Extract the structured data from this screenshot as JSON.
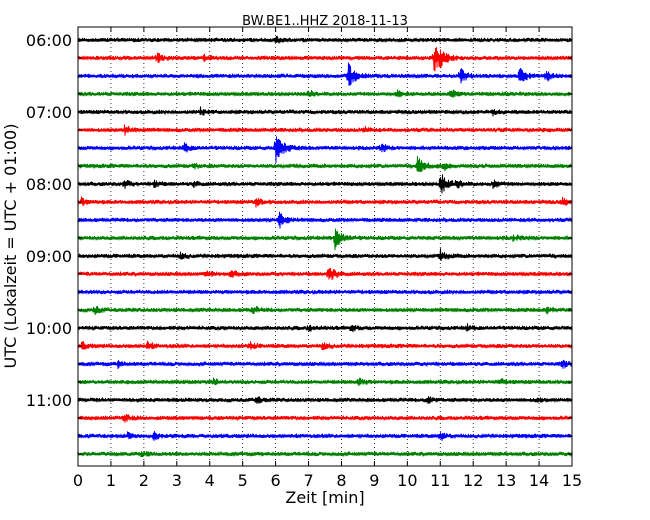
{
  "chart_data": {
    "type": "line",
    "subtype": "seismogram-dayplot",
    "title": "BW.BE1..HHZ 2018-11-13",
    "xlabel": "Zeit  [min]",
    "ylabel": "UTC (Lokalzeit = UTC + 01:00)",
    "xlim": [
      0,
      15
    ],
    "x_ticks": [
      "0",
      "1",
      "2",
      "3",
      "4",
      "5",
      "6",
      "7",
      "8",
      "9",
      "10",
      "11",
      "12",
      "13",
      "14",
      "15"
    ],
    "y_tick_labels": [
      "06:00",
      "07:00",
      "08:00",
      "09:00",
      "10:00",
      "11:00"
    ],
    "grid": "vertical-dotted",
    "trace_colors": [
      "#000000",
      "#ff0000",
      "#0000ff",
      "#008000"
    ],
    "traces": [
      {
        "start": "06:00",
        "events": [
          [
            6.0,
            0.4
          ]
        ]
      },
      {
        "start": "06:15",
        "events": [
          [
            2.4,
            0.5
          ],
          [
            3.8,
            0.4
          ],
          [
            10.8,
            1.4
          ],
          [
            11.0,
            0.6
          ]
        ]
      },
      {
        "start": "06:30",
        "events": [
          [
            8.2,
            1.3
          ],
          [
            11.6,
            0.8
          ],
          [
            13.4,
            0.8
          ],
          [
            14.2,
            0.5
          ]
        ]
      },
      {
        "start": "06:45",
        "events": [
          [
            7.0,
            0.4
          ],
          [
            9.7,
            0.3
          ],
          [
            11.3,
            0.4
          ]
        ]
      },
      {
        "start": "07:00",
        "events": [
          [
            3.7,
            0.4
          ],
          [
            12.6,
            0.3
          ]
        ]
      },
      {
        "start": "07:15",
        "events": [
          [
            1.4,
            0.5
          ],
          [
            8.7,
            0.3
          ]
        ]
      },
      {
        "start": "07:30",
        "events": [
          [
            3.2,
            0.5
          ],
          [
            6.0,
            1.5
          ],
          [
            9.2,
            0.4
          ]
        ]
      },
      {
        "start": "07:45",
        "events": [
          [
            3.5,
            0.3
          ],
          [
            10.3,
            1.0
          ],
          [
            11.1,
            0.4
          ]
        ]
      },
      {
        "start": "08:00",
        "events": [
          [
            1.4,
            0.4
          ],
          [
            2.3,
            0.3
          ],
          [
            3.5,
            0.3
          ],
          [
            11.0,
            1.2
          ],
          [
            11.5,
            0.4
          ],
          [
            12.6,
            0.4
          ]
        ]
      },
      {
        "start": "08:15",
        "events": [
          [
            0.1,
            0.4
          ],
          [
            5.4,
            0.4
          ],
          [
            14.7,
            0.4
          ]
        ]
      },
      {
        "start": "08:30",
        "events": [
          [
            6.1,
            0.8
          ]
        ]
      },
      {
        "start": "08:45",
        "events": [
          [
            7.8,
            1.1
          ],
          [
            13.2,
            0.4
          ]
        ]
      },
      {
        "start": "09:00",
        "events": [
          [
            3.1,
            0.3
          ],
          [
            11.0,
            0.6
          ]
        ]
      },
      {
        "start": "09:15",
        "events": [
          [
            3.9,
            0.4
          ],
          [
            4.6,
            0.4
          ],
          [
            7.6,
            0.9
          ]
        ]
      },
      {
        "start": "09:30",
        "events": []
      },
      {
        "start": "09:45",
        "events": [
          [
            0.5,
            0.4
          ],
          [
            5.3,
            0.4
          ],
          [
            14.2,
            0.4
          ]
        ]
      },
      {
        "start": "10:00",
        "events": [
          [
            7.0,
            0.3
          ],
          [
            8.3,
            0.3
          ],
          [
            11.8,
            0.3
          ]
        ]
      },
      {
        "start": "10:15",
        "events": [
          [
            0.1,
            0.4
          ],
          [
            2.1,
            0.4
          ],
          [
            5.2,
            0.4
          ],
          [
            7.4,
            0.4
          ]
        ]
      },
      {
        "start": "10:30",
        "events": [
          [
            1.2,
            0.3
          ],
          [
            14.7,
            0.4
          ]
        ]
      },
      {
        "start": "10:45",
        "events": [
          [
            4.1,
            0.3
          ],
          [
            8.5,
            0.4
          ],
          [
            12.8,
            0.3
          ]
        ]
      },
      {
        "start": "11:00",
        "events": [
          [
            5.4,
            0.4
          ],
          [
            10.6,
            0.4
          ],
          [
            13.9,
            0.3
          ]
        ]
      },
      {
        "start": "11:15",
        "events": [
          [
            1.4,
            0.4
          ]
        ]
      },
      {
        "start": "11:30",
        "events": [
          [
            1.5,
            0.3
          ],
          [
            2.3,
            0.4
          ],
          [
            11.0,
            0.4
          ]
        ]
      },
      {
        "start": "11:45",
        "events": [
          [
            1.9,
            0.3
          ]
        ]
      }
    ]
  }
}
